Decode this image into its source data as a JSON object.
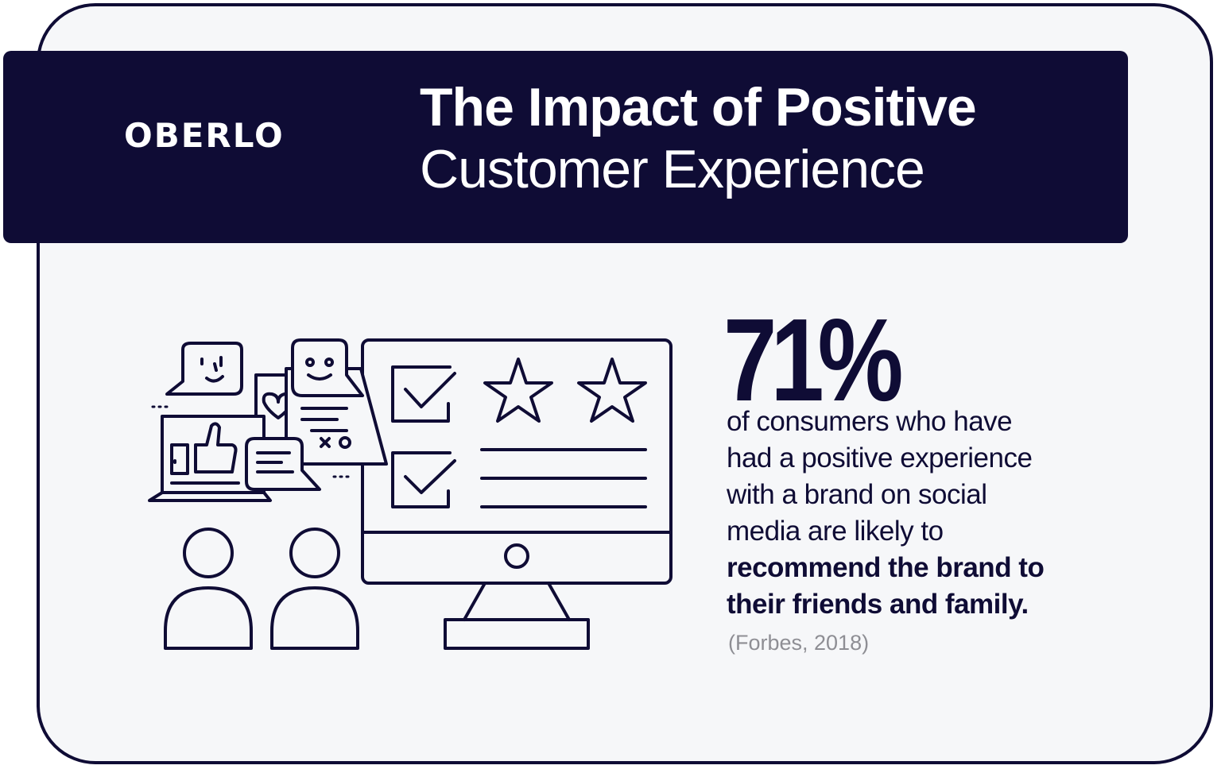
{
  "brand": {
    "logo_text": "OBERLO"
  },
  "header": {
    "title_line1": "The Impact of Positive",
    "title_line2": "Customer Experience"
  },
  "stat": {
    "value": "71%",
    "description_lines": [
      "of consumers who have",
      "had a positive experience",
      "with a brand on social",
      "media are likely to"
    ],
    "highlight_lines": [
      "recommend the brand to",
      "their friends and family."
    ],
    "source": "(Forbes, 2018)"
  },
  "illustration": {
    "icons": [
      "smiley-chat-bubble-icon",
      "happy-chat-bubble-icon",
      "heart-icon",
      "laptop-icon",
      "thumbs-up-icon",
      "text-chat-bubble-icon",
      "monitor-icon",
      "checkbox-icon",
      "star-icon",
      "person-icon"
    ]
  },
  "colors": {
    "navy": "#0f0c35",
    "background": "#f6f7f9",
    "muted": "#8e8e94"
  }
}
